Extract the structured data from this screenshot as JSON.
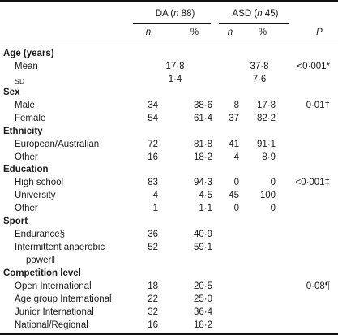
{
  "headers": {
    "da": {
      "prefix": "DA (",
      "n_sym": "n",
      "suffix": " 88)"
    },
    "asd": {
      "prefix": "ASD (",
      "n_sym": "n",
      "suffix": " 45)"
    },
    "n": "n",
    "pct": "%",
    "p": "P"
  },
  "sections": [
    {
      "title": "Age (years)",
      "rows": [
        {
          "label": "Mean",
          "da_merged": "17·8",
          "asd_merged": "37·8",
          "p": "<0·001*"
        },
        {
          "label": "SD",
          "label_style": "smallcaps",
          "da_merged": "1·4",
          "asd_merged": "7·6",
          "p": ""
        }
      ]
    },
    {
      "title": "Sex",
      "rows": [
        {
          "label": "Male",
          "da_n": "34",
          "da_pct": "38·6",
          "asd_n": "8",
          "asd_pct": "17·8",
          "p": "0·01†"
        },
        {
          "label": "Female",
          "da_n": "54",
          "da_pct": "61·4",
          "asd_n": "37",
          "asd_pct": "82·2",
          "p": ""
        }
      ]
    },
    {
      "title": "Ethnicity",
      "rows": [
        {
          "label": "European/Australian",
          "da_n": "72",
          "da_pct": "81·8",
          "asd_n": "41",
          "asd_pct": "91·1",
          "p": ""
        },
        {
          "label": "Other",
          "da_n": "16",
          "da_pct": "18·2",
          "asd_n": "4",
          "asd_pct": "8·9",
          "p": ""
        }
      ]
    },
    {
      "title": "Education",
      "rows": [
        {
          "label": "High school",
          "da_n": "83",
          "da_pct": "94·3",
          "asd_n": "0",
          "asd_pct": "0",
          "p": "<0·001‡"
        },
        {
          "label": "University",
          "da_n": "4",
          "da_pct": "4·5",
          "asd_n": "45",
          "asd_pct": "100",
          "p": ""
        },
        {
          "label": "Other",
          "da_n": "1",
          "da_pct": "1·1",
          "asd_n": "0",
          "asd_pct": "0",
          "p": ""
        }
      ]
    },
    {
      "title": "Sport",
      "rows": [
        {
          "label": "Endurance§",
          "da_n": "36",
          "da_pct": "40·9",
          "asd_n": "",
          "asd_pct": "",
          "p": ""
        },
        {
          "label": "Intermittent anaerobic",
          "label_cont": "power‖",
          "da_n": "52",
          "da_pct": "59·1",
          "asd_n": "",
          "asd_pct": "",
          "p": ""
        }
      ]
    },
    {
      "title": "Competition level",
      "rows": [
        {
          "label": "Open International",
          "da_n": "18",
          "da_pct": "20·5",
          "asd_n": "",
          "asd_pct": "",
          "p": "0·08¶"
        },
        {
          "label": "Age group International",
          "da_n": "22",
          "da_pct": "25·0",
          "asd_n": "",
          "asd_pct": "",
          "p": ""
        },
        {
          "label": "Junior International",
          "da_n": "32",
          "da_pct": "36·4",
          "asd_n": "",
          "asd_pct": "",
          "p": ""
        },
        {
          "label": "National/Regional",
          "da_n": "16",
          "da_pct": "18·2",
          "asd_n": "",
          "asd_pct": "",
          "p": ""
        }
      ]
    }
  ]
}
